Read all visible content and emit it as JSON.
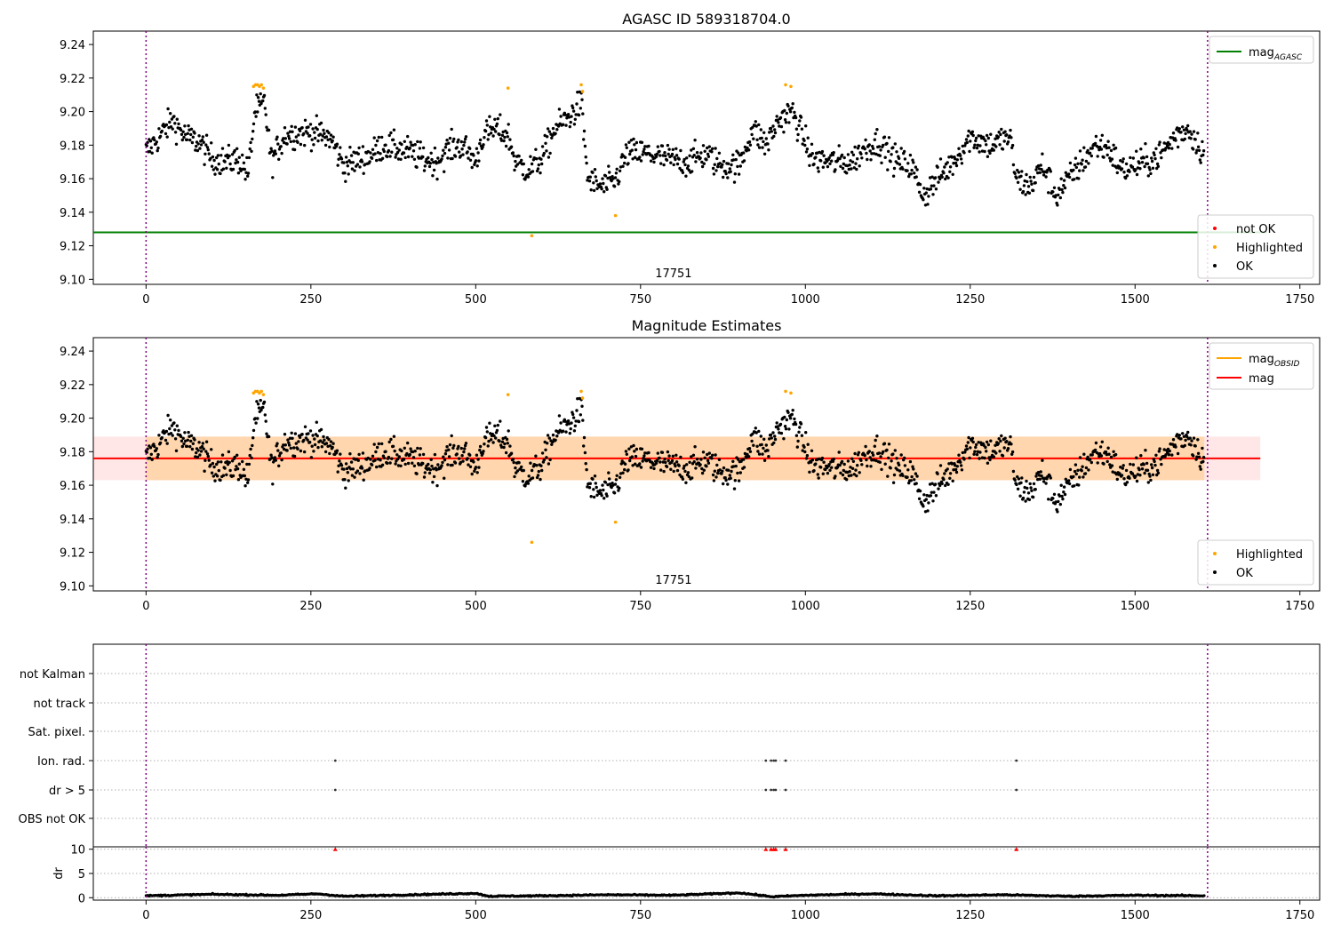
{
  "figure": {
    "obsid_label": "17751"
  },
  "chart_data": [
    {
      "type": "scatter",
      "title": "AGASC ID 589318704.0",
      "xlim": [
        -80,
        1780
      ],
      "ylim": [
        9.097,
        9.248
      ],
      "xticks": [
        0,
        250,
        500,
        750,
        1000,
        1250,
        1500,
        1750
      ],
      "yticks": [
        9.1,
        9.12,
        9.14,
        9.16,
        9.18,
        9.2,
        9.22,
        9.24
      ],
      "obsid_boundaries": [
        0,
        1610
      ],
      "reference_lines": [
        {
          "name": "mag",
          "subscript": "AGASC",
          "y": 9.128,
          "x_range": [
            -80,
            1700
          ],
          "color": "#008000"
        }
      ],
      "series": [
        {
          "name": "not OK",
          "color": "#ff0000",
          "values": []
        },
        {
          "name": "Highlighted",
          "color": "#ffa500",
          "points": [
            [
              163,
              9.215
            ],
            [
              166,
              9.216
            ],
            [
              169,
              9.216
            ],
            [
              172,
              9.215
            ],
            [
              175,
              9.216
            ],
            [
              178,
              9.214
            ],
            [
              549,
              9.214
            ],
            [
              585,
              9.126
            ],
            [
              660,
              9.216
            ],
            [
              662,
              9.212
            ],
            [
              712,
              9.138
            ],
            [
              970,
              9.216
            ],
            [
              978,
              9.215
            ]
          ]
        },
        {
          "name": "OK",
          "color": "#000000",
          "segments": [
            [
              0,
              9.176
            ],
            [
              20,
              9.185
            ],
            [
              40,
              9.195
            ],
            [
              60,
              9.185
            ],
            [
              80,
              9.182
            ],
            [
              100,
              9.172
            ],
            [
              120,
              9.17
            ],
            [
              140,
              9.172
            ],
            [
              155,
              9.163
            ],
            [
              165,
              9.2
            ],
            [
              180,
              9.205
            ],
            [
              190,
              9.17
            ],
            [
              210,
              9.186
            ],
            [
              250,
              9.188
            ],
            [
              280,
              9.184
            ],
            [
              300,
              9.168
            ],
            [
              340,
              9.174
            ],
            [
              360,
              9.18
            ],
            [
              380,
              9.178
            ],
            [
              400,
              9.176
            ],
            [
              420,
              9.172
            ],
            [
              440,
              9.17
            ],
            [
              460,
              9.178
            ],
            [
              480,
              9.18
            ],
            [
              500,
              9.17
            ],
            [
              510,
              9.185
            ],
            [
              530,
              9.19
            ],
            [
              550,
              9.185
            ],
            [
              560,
              9.17
            ],
            [
              580,
              9.165
            ],
            [
              600,
              9.172
            ],
            [
              620,
              9.19
            ],
            [
              640,
              9.196
            ],
            [
              660,
              9.205
            ],
            [
              670,
              9.16
            ],
            [
              690,
              9.155
            ],
            [
              710,
              9.158
            ],
            [
              730,
              9.175
            ],
            [
              760,
              9.175
            ],
            [
              790,
              9.172
            ],
            [
              820,
              9.17
            ],
            [
              850,
              9.175
            ],
            [
              870,
              9.168
            ],
            [
              900,
              9.168
            ],
            [
              920,
              9.19
            ],
            [
              940,
              9.18
            ],
            [
              960,
              9.195
            ],
            [
              980,
              9.2
            ],
            [
              1000,
              9.182
            ],
            [
              1010,
              9.172
            ],
            [
              1040,
              9.17
            ],
            [
              1070,
              9.17
            ],
            [
              1090,
              9.178
            ],
            [
              1110,
              9.182
            ],
            [
              1140,
              9.17
            ],
            [
              1160,
              9.168
            ],
            [
              1180,
              9.15
            ],
            [
              1200,
              9.16
            ],
            [
              1220,
              9.168
            ],
            [
              1250,
              9.185
            ],
            [
              1280,
              9.18
            ],
            [
              1310,
              9.185
            ],
            [
              1320,
              9.16
            ],
            [
              1340,
              9.155
            ],
            [
              1360,
              9.168
            ],
            [
              1380,
              9.15
            ],
            [
              1400,
              9.16
            ],
            [
              1420,
              9.17
            ],
            [
              1440,
              9.18
            ],
            [
              1460,
              9.178
            ],
            [
              1480,
              9.165
            ],
            [
              1500,
              9.168
            ],
            [
              1520,
              9.17
            ],
            [
              1540,
              9.175
            ],
            [
              1560,
              9.185
            ],
            [
              1580,
              9.19
            ],
            [
              1605,
              9.175
            ]
          ]
        }
      ],
      "legends": [
        {
          "position": "upper-right",
          "entries": [
            "mag_AGASC"
          ]
        },
        {
          "position": "lower-right",
          "entries": [
            "not OK",
            "Highlighted",
            "OK"
          ]
        }
      ]
    },
    {
      "type": "scatter",
      "title": "Magnitude Estimates",
      "xlim": [
        -80,
        1780
      ],
      "ylim": [
        9.097,
        9.248
      ],
      "xticks": [
        0,
        250,
        500,
        750,
        1000,
        1250,
        1500,
        1750
      ],
      "yticks": [
        9.1,
        9.12,
        9.14,
        9.16,
        9.18,
        9.2,
        9.22,
        9.24
      ],
      "obsid_boundaries": [
        0,
        1610
      ],
      "bands": [
        {
          "name": "mag",
          "x_range": [
            -80,
            1690
          ],
          "y_range": [
            9.163,
            9.189
          ],
          "color": "#ff000018"
        },
        {
          "name": "mag_OBSID",
          "x_range": [
            0,
            1605
          ],
          "y_range": [
            9.163,
            9.189
          ],
          "color": "#ffa50040"
        }
      ],
      "reference_lines": [
        {
          "name": "mag",
          "subscript": "OBSID",
          "y": 9.176,
          "x_range": [
            0,
            1605
          ],
          "color": "#ffa500"
        },
        {
          "name": "mag",
          "y": 9.176,
          "x_range": [
            -80,
            1690
          ],
          "color": "#ff0000"
        }
      ],
      "series": [
        {
          "name": "Highlighted",
          "color": "#ffa500",
          "points": [
            [
              163,
              9.215
            ],
            [
              166,
              9.216
            ],
            [
              169,
              9.216
            ],
            [
              172,
              9.215
            ],
            [
              175,
              9.216
            ],
            [
              178,
              9.214
            ],
            [
              549,
              9.214
            ],
            [
              585,
              9.126
            ],
            [
              660,
              9.216
            ],
            [
              662,
              9.212
            ],
            [
              712,
              9.138
            ],
            [
              970,
              9.216
            ],
            [
              978,
              9.215
            ]
          ]
        },
        {
          "name": "OK",
          "color": "#000000",
          "same_as_panel": 0
        }
      ],
      "legends": [
        {
          "position": "upper-right",
          "entries": [
            "mag_OBSID",
            "mag"
          ]
        },
        {
          "position": "lower-right",
          "entries": [
            "Highlighted",
            "OK"
          ]
        }
      ]
    },
    {
      "type": "scatter",
      "xlim": [
        -80,
        1780
      ],
      "categories": [
        "not Kalman",
        "not track",
        "Sat. pixel.",
        "Ion. rad.",
        "dr > 5",
        "OBS not OK"
      ],
      "obsid_boundaries": [
        0,
        1610
      ],
      "flag_points": {
        "Ion. rad.": [
          287,
          940,
          948,
          952,
          955,
          970,
          1320
        ],
        "dr > 5": [
          287,
          940,
          948,
          952,
          955,
          970,
          1320
        ]
      }
    },
    {
      "type": "line",
      "ylabel": "dr",
      "xlim": [
        -80,
        1780
      ],
      "ylim": [
        -0.5,
        10.5
      ],
      "xticks": [
        0,
        250,
        500,
        750,
        1000,
        1250,
        1500,
        1750
      ],
      "yticks": [
        0,
        5,
        10
      ],
      "obsid_boundaries": [
        0,
        1610
      ],
      "series": [
        {
          "name": "dr",
          "color": "#000000",
          "points": [
            [
              0,
              0.4
            ],
            [
              100,
              0.7
            ],
            [
              200,
              0.5
            ],
            [
              260,
              0.8
            ],
            [
              300,
              0.3
            ],
            [
              400,
              0.6
            ],
            [
              500,
              0.9
            ],
            [
              520,
              0.3
            ],
            [
              600,
              0.4
            ],
            [
              700,
              0.6
            ],
            [
              800,
              0.5
            ],
            [
              900,
              1.0
            ],
            [
              950,
              0.2
            ],
            [
              1000,
              0.5
            ],
            [
              1100,
              0.8
            ],
            [
              1200,
              0.4
            ],
            [
              1300,
              0.6
            ],
            [
              1400,
              0.3
            ],
            [
              1500,
              0.5
            ],
            [
              1605,
              0.4
            ]
          ]
        }
      ],
      "clipped_markers": {
        "color": "#ff0000",
        "x": [
          287,
          940,
          948,
          952,
          955,
          970,
          1320
        ],
        "y": 10
      }
    }
  ]
}
